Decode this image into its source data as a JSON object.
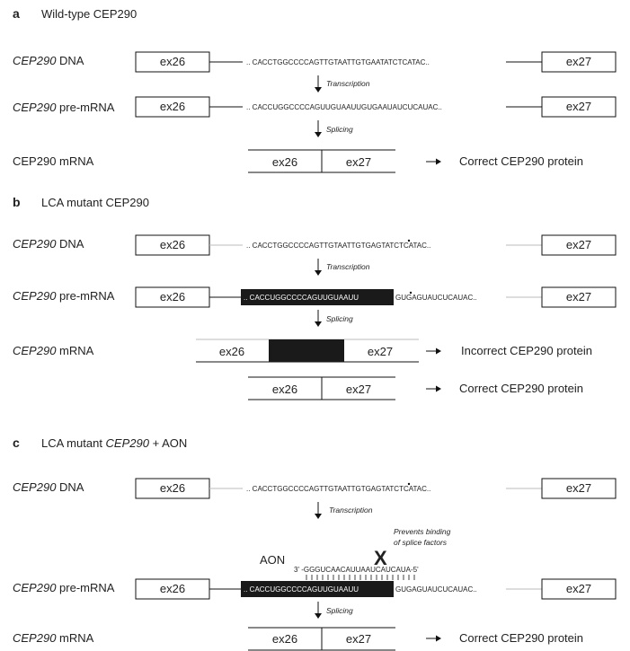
{
  "panels": {
    "a": {
      "letter": "a",
      "title": "Wild-type CEP290"
    },
    "b": {
      "letter": "b",
      "title": "LCA mutant CEP290"
    },
    "c": {
      "letter": "c",
      "title_prefix": "LCA mutant ",
      "title_gene": "CEP290",
      "title_suffix": " + AON"
    }
  },
  "labels": {
    "gene": "CEP290",
    "dna_suffix": " DNA",
    "premrna_suffix": " pre-mRNA",
    "mrna_suffix": " mRNA",
    "mrna_plain": "CEP290 mRNA"
  },
  "exons": {
    "ex26": "ex26",
    "ex27": "ex27"
  },
  "steps": {
    "transcription": "Transcription",
    "splicing": "Splicing"
  },
  "sequences": {
    "wt_dna": ".. CACCTGGCCCCAGTTGTAATTGTGAATATCTCATAC..",
    "wt_rna": ".. CACCUGGCCCCAGUUGUAAUUGUGAAUAUCUCAUAC..",
    "mut_dna": ".. CACCTGGCCCCAGTTGTAATTGTGAGTATCTCATAC..",
    "mut_rna_box": ".. CACCUGGCCCCAGUUGUAAUU",
    "mut_rna_rest": "GUGAGUAUCUCAUAC..",
    "aon_seq": "3' -GGGUCAACAUUAAUCAUCAUA-5'"
  },
  "aon_label": "AON",
  "blocker": {
    "mark": "X",
    "line1": "Prevents binding",
    "line2": "of splice factors"
  },
  "proteins": {
    "correct": "Correct CEP290 protein",
    "incorrect": "Incorrect CEP290 protein"
  }
}
